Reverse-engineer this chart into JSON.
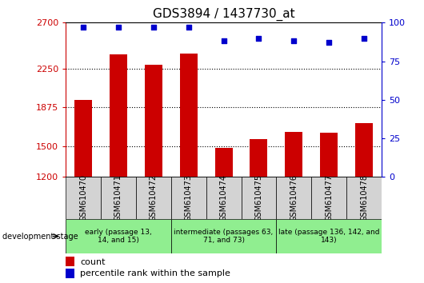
{
  "title": "GDS3894 / 1437730_at",
  "samples": [
    "GSM610470",
    "GSM610471",
    "GSM610472",
    "GSM610473",
    "GSM610474",
    "GSM610475",
    "GSM610476",
    "GSM610477",
    "GSM610478"
  ],
  "counts": [
    1950,
    2390,
    2290,
    2400,
    1480,
    1565,
    1640,
    1630,
    1720
  ],
  "percentile_ranks": [
    97,
    97,
    97,
    97,
    88,
    90,
    88,
    87,
    90
  ],
  "ylim_left": [
    1200,
    2700
  ],
  "ylim_right": [
    0,
    100
  ],
  "yticks_left": [
    1200,
    1500,
    1875,
    2250,
    2700
  ],
  "yticks_right": [
    0,
    25,
    50,
    75,
    100
  ],
  "bar_color": "#cc0000",
  "dot_color": "#0000cc",
  "groups": [
    {
      "label": "early (passage 13,\n14, and 15)",
      "start": 0,
      "end": 3,
      "color": "#90ee90"
    },
    {
      "label": "intermediate (passages 63,\n71, and 73)",
      "start": 3,
      "end": 6,
      "color": "#90ee90"
    },
    {
      "label": "late (passage 136, 142, and\n143)",
      "start": 6,
      "end": 9,
      "color": "#90ee90"
    }
  ],
  "dev_stage_label": "development stage",
  "legend_count": "count",
  "legend_percentile": "percentile rank within the sample",
  "right_axis_color": "#0000cc",
  "left_axis_color": "#cc0000",
  "gridline_y": [
    1500,
    1875,
    2250
  ],
  "bar_width": 0.5
}
